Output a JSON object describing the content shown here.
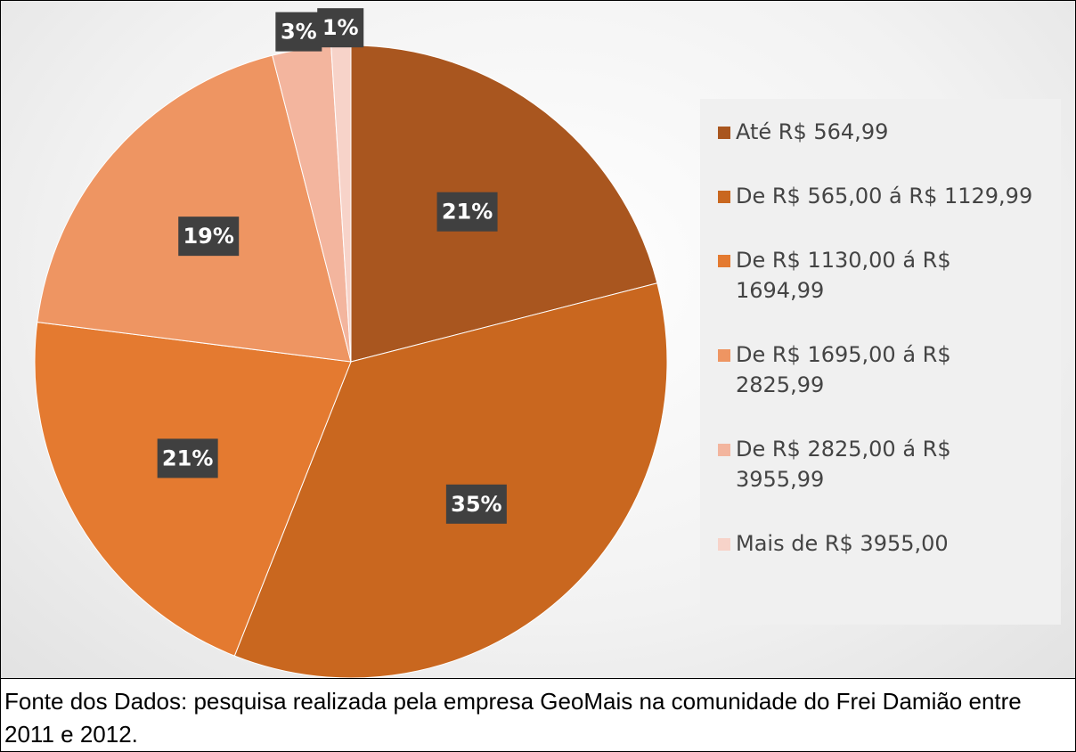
{
  "chart_data": {
    "type": "pie",
    "categories": [
      "Até R$ 564,99",
      "De R$ 565,00 á R$ 1129,99",
      "De R$ 1130,00 á R$ 1694,99",
      "De R$ 1695,00 á R$ 2825,99",
      "De R$ 2825,00 á R$ 3955,99",
      "Mais de R$ 3955,00"
    ],
    "values": [
      21,
      35,
      21,
      19,
      3,
      1
    ],
    "value_labels": [
      "21%",
      "35%",
      "21%",
      "19%",
      "3%",
      "1%"
    ],
    "colors": [
      "#a9561f",
      "#c9671f",
      "#e47a30",
      "#ee9562",
      "#f3b59e",
      "#f7d3c9"
    ]
  },
  "source": "Fonte dos Dados: pesquisa realizada pela empresa GeoMais na comunidade do Frei Damião entre 2011 e 2012."
}
